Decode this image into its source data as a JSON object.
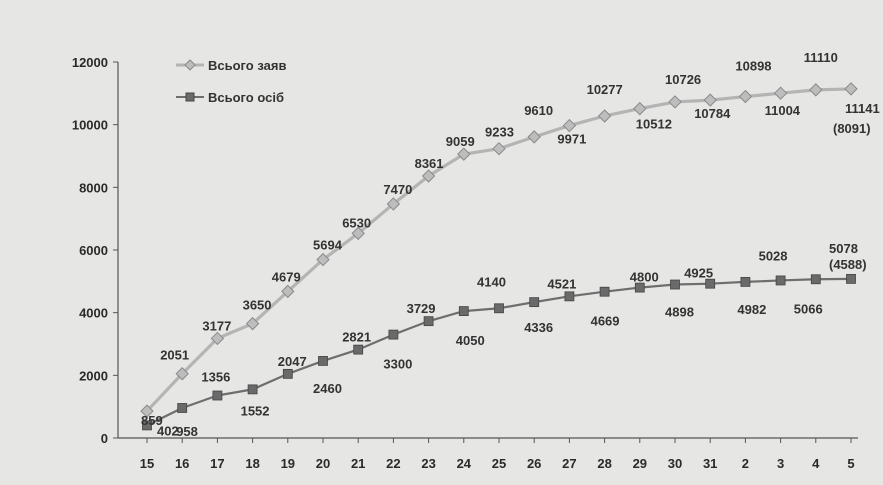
{
  "chart_data": {
    "type": "line",
    "categories": [
      "15",
      "16",
      "17",
      "18",
      "19",
      "20",
      "21",
      "22",
      "23",
      "24",
      "25",
      "26",
      "27",
      "28",
      "29",
      "30",
      "31",
      "2",
      "3",
      "4",
      "5"
    ],
    "ylim": [
      0,
      12000
    ],
    "yticks": [
      "0",
      "2000",
      "4000",
      "6000",
      "8000",
      "10000",
      "12000"
    ],
    "grid": false,
    "legend": "top-left",
    "series": [
      {
        "name": "Всього заяв",
        "color": "#b4b4b4",
        "values": [
          859,
          2051,
          3177,
          3650,
          4679,
          5694,
          6530,
          7470,
          8361,
          9059,
          9233,
          9610,
          9971,
          10277,
          10512,
          10726,
          10784,
          10898,
          11004,
          11110,
          11141
        ],
        "labels": [
          "859",
          "2051",
          "3177",
          "3650",
          "4679",
          "5694",
          "6530",
          "7470",
          "8361",
          "9059",
          "9233",
          "9610",
          "9971",
          "10277",
          "10512",
          "10726",
          "10784",
          "10898",
          "11004",
          "11110",
          "11141"
        ],
        "extra_label": "(8091)"
      },
      {
        "name": "Всього осіб",
        "color": "#6e6e6e",
        "values": [
          402,
          958,
          1356,
          1552,
          2047,
          2460,
          2821,
          3300,
          3729,
          4050,
          4140,
          4336,
          4521,
          4669,
          4800,
          4898,
          4925,
          4982,
          5028,
          5066,
          5078
        ],
        "labels": [
          "402",
          "958",
          "1356",
          "1552",
          "2047",
          "2460",
          "2821",
          "3300",
          "3729",
          "4050",
          "4140",
          "4336",
          "4521",
          "4669",
          "4800",
          "4898",
          "4925",
          "4982",
          "5028",
          "5066",
          "5078"
        ],
        "extra_label": "(4588)"
      }
    ]
  }
}
